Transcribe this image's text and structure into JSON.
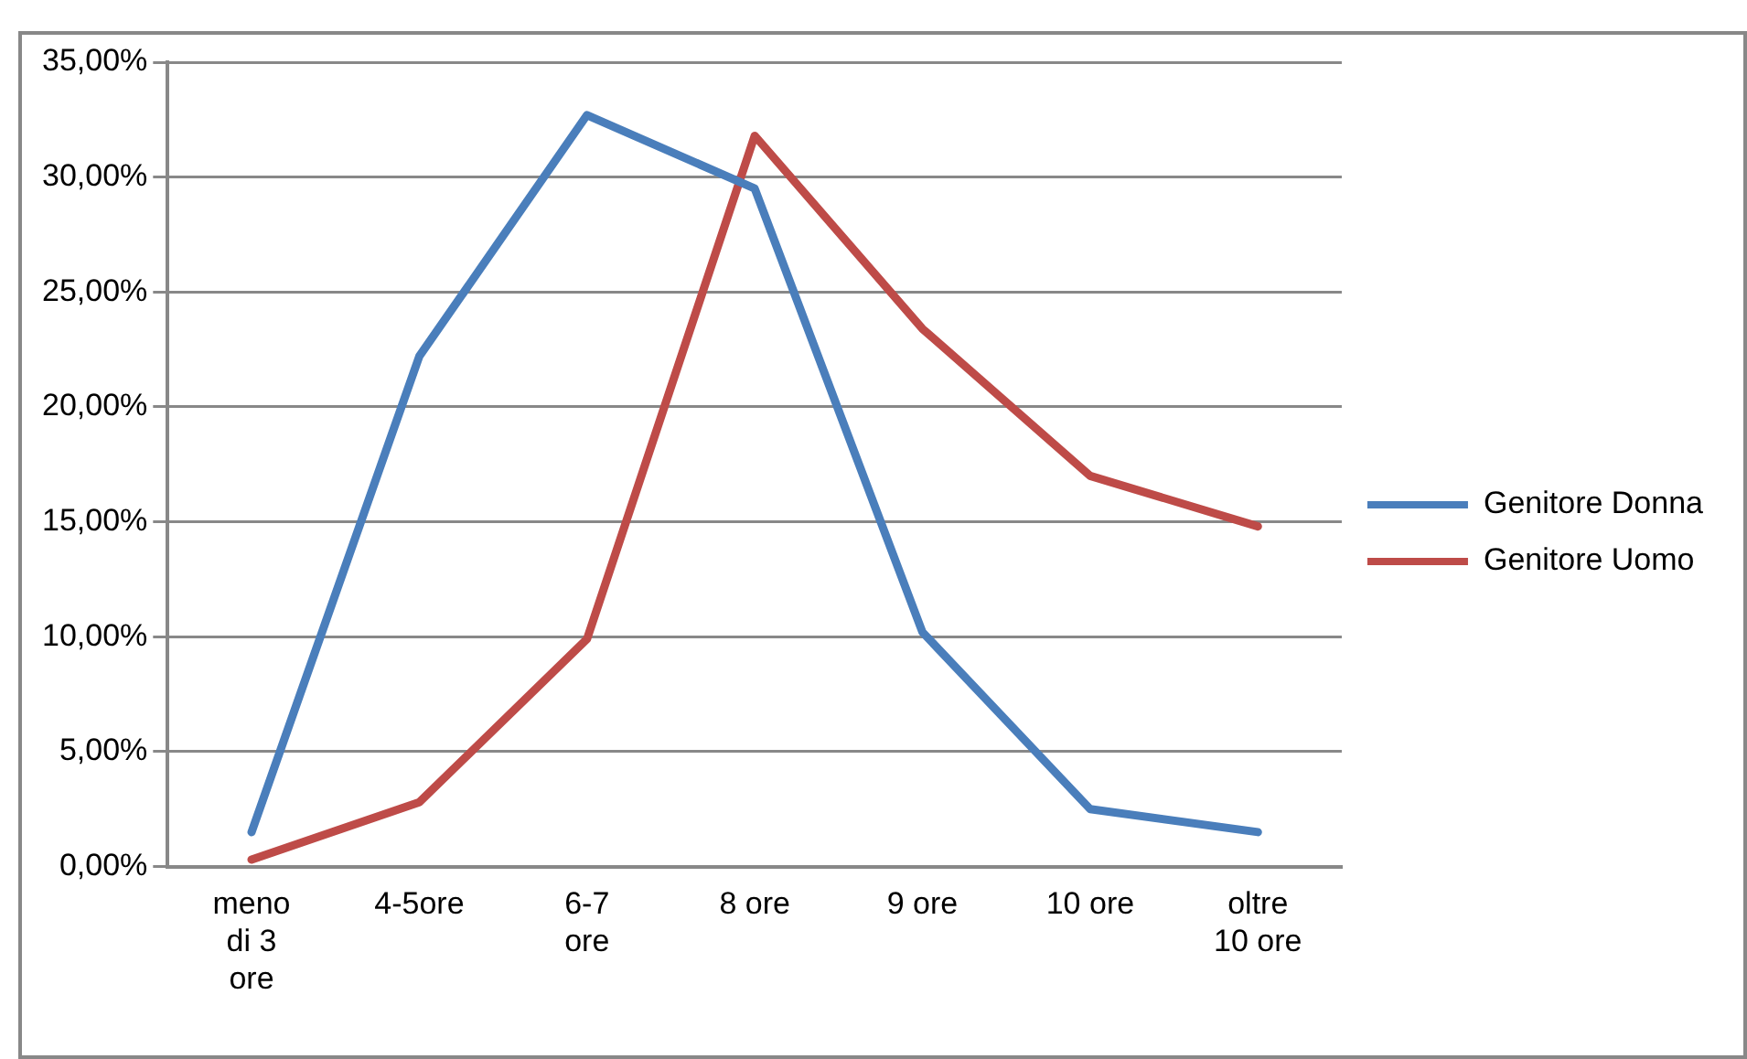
{
  "chart_data": {
    "type": "line",
    "categories": [
      "meno di 3 ore",
      "4-5ore",
      "6-7 ore",
      "8 ore",
      "9 ore",
      "10 ore",
      "oltre 10 ore"
    ],
    "series": [
      {
        "name": "Genitore Donna",
        "color": "#4a7ebb",
        "values": [
          1.5,
          22.2,
          32.7,
          29.5,
          10.2,
          2.5,
          1.5
        ]
      },
      {
        "name": "Genitore Uomo",
        "color": "#be4b48",
        "values": [
          0.3,
          2.8,
          9.9,
          31.8,
          23.4,
          17.0,
          14.8
        ]
      }
    ],
    "ylim": [
      0,
      35
    ],
    "yticks": [
      {
        "value": 0,
        "label": "0,00%"
      },
      {
        "value": 5,
        "label": "5,00%"
      },
      {
        "value": 10,
        "label": "10,00%"
      },
      {
        "value": 15,
        "label": "15,00%"
      },
      {
        "value": 20,
        "label": "20,00%"
      },
      {
        "value": 25,
        "label": "25,00%"
      },
      {
        "value": 30,
        "label": "30,00%"
      },
      {
        "value": 35,
        "label": "35,00%"
      }
    ],
    "grid": "y",
    "legend": "right",
    "marker": "none",
    "line_style": "solid"
  }
}
